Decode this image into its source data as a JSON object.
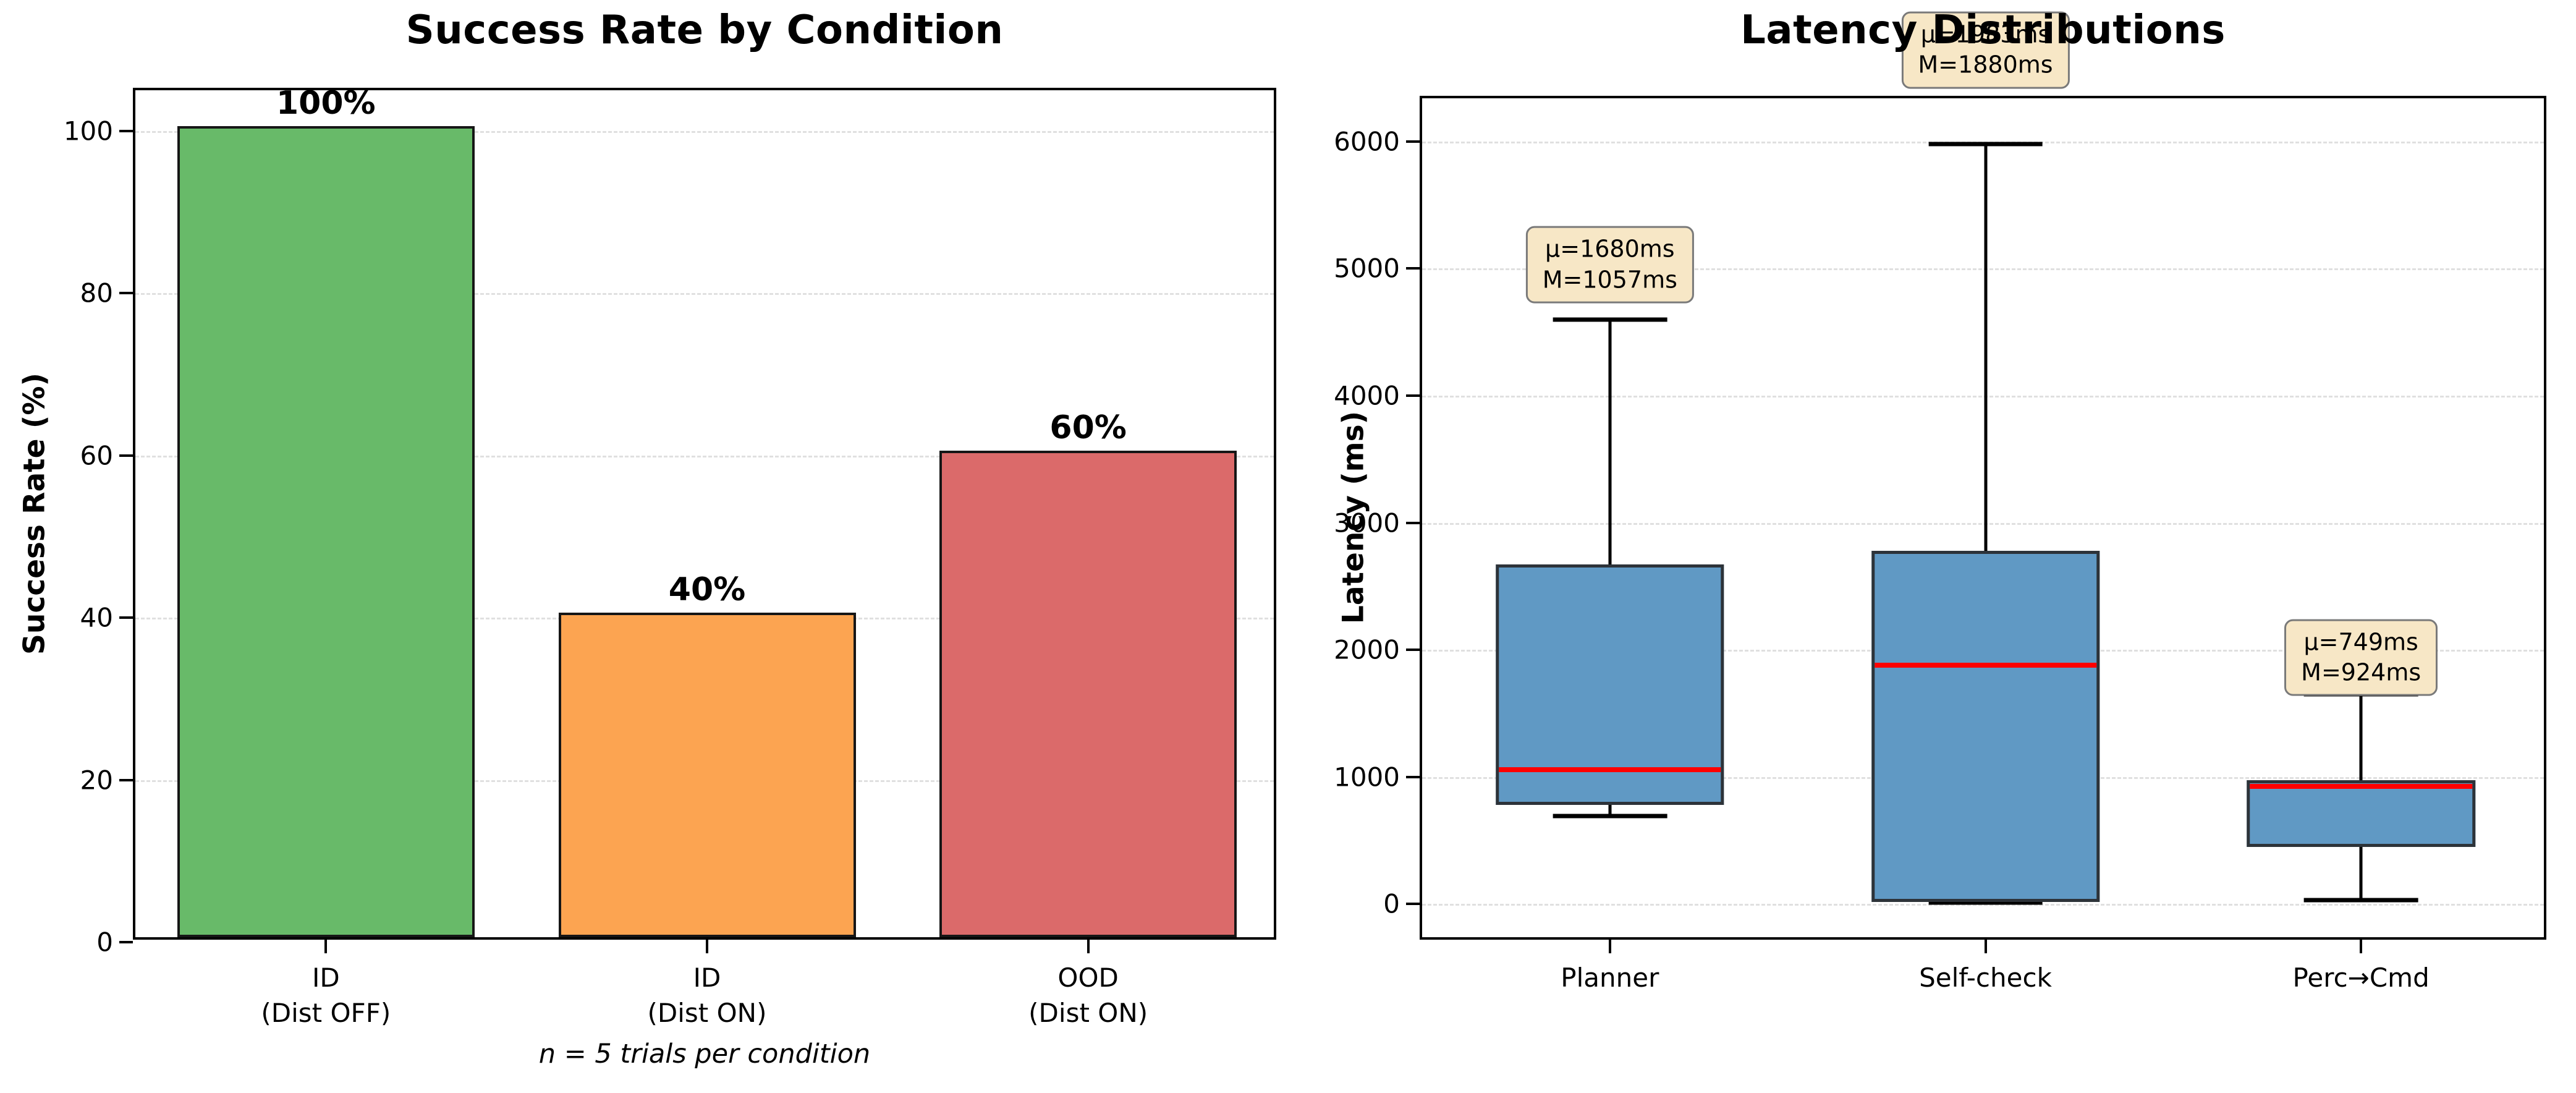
{
  "figure": {
    "background": "#ffffff"
  },
  "chart_data": [
    {
      "type": "bar",
      "title": "Success Rate by Condition",
      "xlabel": "",
      "ylabel": "Success Rate (%)",
      "footnote": "n = 5 trials per condition",
      "categories": [
        [
          "ID",
          "(Dist OFF)"
        ],
        [
          "ID",
          "(Dist ON)"
        ],
        [
          "OOD",
          "(Dist ON)"
        ]
      ],
      "values": [
        100,
        40,
        60
      ],
      "bar_labels": [
        "100%",
        "40%",
        "60%"
      ],
      "bar_colors": [
        "#68ba69",
        "#fca451",
        "#db6a6a"
      ],
      "bar_edge_color": "#161616",
      "ylim": [
        0,
        105
      ],
      "yticks": [
        0,
        20,
        40,
        60,
        80,
        100
      ],
      "grid": true,
      "legend": null
    },
    {
      "type": "box",
      "title": "Latency Distributions",
      "xlabel": "",
      "ylabel": "Latency (ms)",
      "categories": [
        "Planner",
        "Self-check",
        "Perc→Cmd"
      ],
      "ylim": [
        -300,
        6340
      ],
      "yticks": [
        0,
        1000,
        2000,
        3000,
        4000,
        5000,
        6000
      ],
      "grid": true,
      "box_fill_color": "#6099c4",
      "box_edge_color": "#2d3339",
      "median_color": "#ff0000",
      "whisker_color": "#000000",
      "annotation_bg_color": "#f7e7c6",
      "boxes": [
        {
          "label": "Planner",
          "whislo": 690,
          "q1": 780,
          "med": 1057,
          "q3": 2670,
          "whishi": 4600,
          "mean": 1680,
          "annotation": {
            "lines": [
              "μ=1680ms",
              "M=1057ms"
            ],
            "y": 5030
          }
        },
        {
          "label": "Self-check",
          "whislo": 10,
          "q1": 15,
          "med": 1880,
          "q3": 2780,
          "whishi": 5980,
          "mean": 1983,
          "annotation": {
            "lines": [
              "μ=1983ms",
              "M=1880ms"
            ],
            "y": 6720
          }
        },
        {
          "label": "Perc→Cmd",
          "whislo": 30,
          "q1": 450,
          "med": 924,
          "q3": 975,
          "whishi": 1650,
          "mean": 749,
          "annotation": {
            "lines": [
              "μ=749ms",
              "M=924ms"
            ],
            "y": 1940
          }
        }
      ]
    }
  ]
}
